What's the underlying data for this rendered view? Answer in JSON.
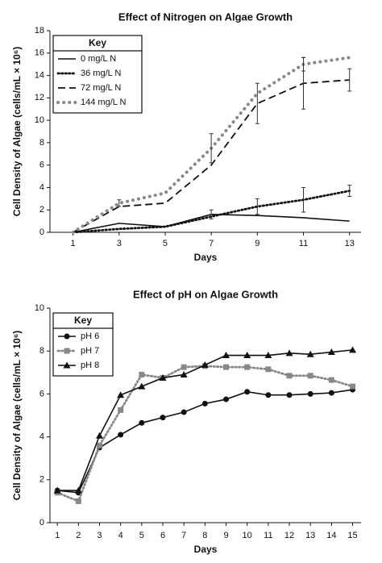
{
  "chart_data": [
    {
      "type": "line",
      "title": "Effect of Nitrogen on Algae Growth",
      "x_label": "Days",
      "y_label": "Cell Density of Algae (cells/mL × 10⁶)",
      "legend_title": "Key",
      "legend": "upper left",
      "x": [
        1,
        3,
        5,
        7,
        9,
        11,
        13
      ],
      "xlim": [
        0,
        13.5
      ],
      "xticks": [
        1,
        3,
        5,
        7,
        9,
        11,
        13
      ],
      "ylim": [
        0,
        18
      ],
      "yticks": [
        0,
        2,
        4,
        6,
        8,
        10,
        12,
        14,
        16,
        18
      ],
      "series": [
        {
          "name": "0 mg/L N",
          "color": "#111111",
          "style": "solid",
          "values": [
            0,
            0.8,
            0.5,
            1.6,
            1.5,
            1.3,
            1.0
          ],
          "errors": [
            null,
            null,
            null,
            0.4,
            null,
            null,
            null
          ]
        },
        {
          "name": "36 mg/L N",
          "color": "#111111",
          "style": "dotted",
          "values": [
            0,
            0.3,
            0.5,
            1.4,
            2.3,
            2.9,
            3.7
          ],
          "errors": [
            null,
            null,
            null,
            null,
            0.7,
            1.1,
            0.5
          ]
        },
        {
          "name": "72 mg/L N",
          "color": "#111111",
          "style": "dashed",
          "values": [
            0,
            2.3,
            2.6,
            6.0,
            11.5,
            13.3,
            13.6
          ],
          "errors": [
            null,
            null,
            null,
            null,
            1.8,
            2.3,
            1.0
          ]
        },
        {
          "name": "144 mg/L N",
          "color": "#888888",
          "style": "dots",
          "values": [
            0,
            2.6,
            3.5,
            7.5,
            12.4,
            15.0,
            15.6
          ],
          "errors": [
            null,
            0.3,
            null,
            1.3,
            null,
            0.6,
            null
          ]
        }
      ]
    },
    {
      "type": "line",
      "title": "Effect of pH on Algae Growth",
      "x_label": "Days",
      "y_label": "Cell Density of Algae (cells/mL × 10⁶)",
      "legend_title": "Key",
      "legend": "upper left",
      "x": [
        1,
        2,
        3,
        4,
        5,
        6,
        7,
        8,
        9,
        10,
        11,
        12,
        13,
        14,
        15
      ],
      "xlim": [
        0.65,
        15.4
      ],
      "xticks": [
        1,
        2,
        3,
        4,
        5,
        6,
        7,
        8,
        9,
        10,
        11,
        12,
        13,
        14,
        15
      ],
      "ylim": [
        0,
        10
      ],
      "yticks": [
        0,
        2,
        4,
        6,
        8,
        10
      ],
      "series": [
        {
          "name": "pH 6",
          "color": "#111111",
          "style": "solid",
          "marker": "circle",
          "values": [
            1.5,
            1.4,
            3.5,
            4.1,
            4.65,
            4.9,
            5.15,
            5.55,
            5.75,
            6.1,
            5.95,
            5.95,
            6.0,
            6.05,
            6.2
          ]
        },
        {
          "name": "pH 7",
          "color": "#888888",
          "style": "dotted",
          "marker": "square",
          "values": [
            1.4,
            1.0,
            3.6,
            5.25,
            6.9,
            6.75,
            7.25,
            7.3,
            7.25,
            7.25,
            7.15,
            6.85,
            6.85,
            6.65,
            6.35
          ]
        },
        {
          "name": "pH 8",
          "color": "#111111",
          "style": "solid",
          "marker": "triangle",
          "values": [
            1.5,
            1.5,
            4.05,
            5.95,
            6.35,
            6.75,
            6.9,
            7.35,
            7.8,
            7.8,
            7.8,
            7.9,
            7.85,
            7.95,
            8.05
          ]
        }
      ]
    }
  ]
}
